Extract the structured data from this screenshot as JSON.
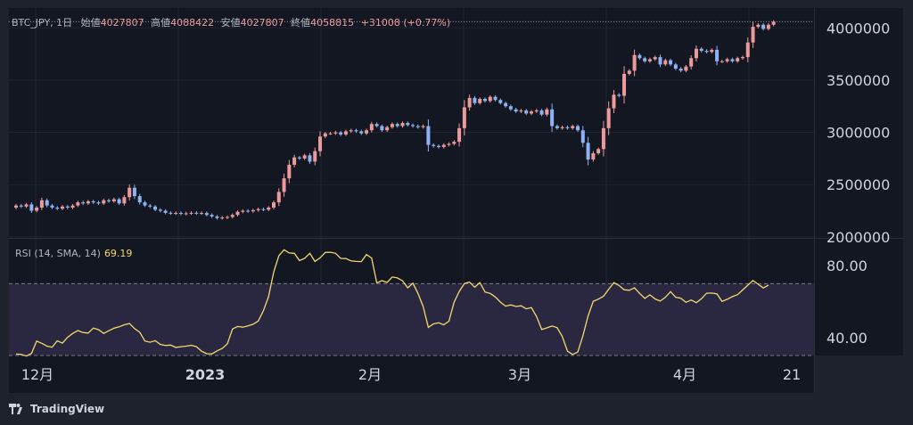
{
  "legend": {
    "symbol": "BTC_JPY, 1日",
    "open_label": "始値",
    "open": "4027807",
    "high_label": "高値",
    "high": "4088422",
    "low_label": "安値",
    "low": "4027807",
    "close_label": "終値",
    "close": "4058815",
    "change": "+31008 (+0.77%)"
  },
  "rsi_legend": {
    "label": "RSI (14, SMA, 14)",
    "value": "69.19"
  },
  "branding": {
    "name": "TradingView"
  },
  "colors": {
    "up": "#ef9a9a",
    "down": "#8fb2f5",
    "rsi": "#f5d76e",
    "band": "#2a2840",
    "bg": "#1e222d",
    "pane": "#131722"
  },
  "chart_data": [
    {
      "type": "candlestick",
      "title": "BTC_JPY, 1日",
      "price_axis_ticks": [
        "4000000",
        "3500000",
        "3000000",
        "2500000",
        "2000000"
      ],
      "ylim": [
        1990000,
        4190000
      ],
      "time_axis_ticks": [
        "12月",
        "2023",
        "2月",
        "3月",
        "4月",
        "21"
      ],
      "last_price": 4058815,
      "closes": [
        2300000,
        2290000,
        2310000,
        2250000,
        2280000,
        2350000,
        2300000,
        2280000,
        2270000,
        2290000,
        2280000,
        2300000,
        2330000,
        2320000,
        2340000,
        2330000,
        2320000,
        2350000,
        2340000,
        2360000,
        2320000,
        2380000,
        2470000,
        2390000,
        2330000,
        2300000,
        2290000,
        2260000,
        2250000,
        2230000,
        2225000,
        2228000,
        2220000,
        2225000,
        2230000,
        2225000,
        2228000,
        2210000,
        2195000,
        2180000,
        2185000,
        2190000,
        2210000,
        2240000,
        2250000,
        2245000,
        2255000,
        2265000,
        2260000,
        2280000,
        2330000,
        2430000,
        2560000,
        2690000,
        2760000,
        2750000,
        2780000,
        2720000,
        2820000,
        2960000,
        2990000,
        2990000,
        3000000,
        2980000,
        3010000,
        3020000,
        3010000,
        2990000,
        3020000,
        3080000,
        3060000,
        3020000,
        3050000,
        3080000,
        3060000,
        3090000,
        3070000,
        3060000,
        3050000,
        3060000,
        2880000,
        2870000,
        2860000,
        2880000,
        2890000,
        2910000,
        3040000,
        3240000,
        3330000,
        3280000,
        3320000,
        3300000,
        3340000,
        3310000,
        3280000,
        3250000,
        3220000,
        3200000,
        3210000,
        3180000,
        3200000,
        3210000,
        3170000,
        3220000,
        3060000,
        3040000,
        3050000,
        3040000,
        3060000,
        3020000,
        2900000,
        2740000,
        2800000,
        2840000,
        3040000,
        3230000,
        3360000,
        3350000,
        3560000,
        3590000,
        3740000,
        3710000,
        3680000,
        3700000,
        3720000,
        3650000,
        3690000,
        3650000,
        3610000,
        3590000,
        3630000,
        3710000,
        3800000,
        3780000,
        3770000,
        3790000,
        3680000,
        3680000,
        3700000,
        3680000,
        3710000,
        3720000,
        3860000,
        4010000,
        4030000,
        3990000,
        4030000,
        4058815
      ]
    },
    {
      "type": "line",
      "title": "RSI (14, SMA, 14)",
      "axis_ticks": [
        "80.00",
        "40.00"
      ],
      "ylim": [
        30,
        95
      ],
      "bands": [
        70,
        30
      ],
      "values": [
        30.8,
        30.6,
        29.7,
        31.2,
        38.0,
        36.8,
        35.2,
        34.6,
        38.2,
        36.9,
        40.1,
        42.3,
        43.9,
        42.8,
        42.5,
        45.3,
        44.4,
        42.3,
        43.8,
        45.2,
        46.0,
        47.1,
        47.8,
        45.0,
        43.0,
        38.1,
        37.4,
        38.3,
        36.2,
        35.6,
        35.8,
        34.5,
        34.9,
        35.2,
        35.7,
        34.9,
        32.4,
        31.0,
        30.9,
        32.6,
        33.9,
        36.5,
        44.8,
        46.2,
        45.8,
        46.5,
        47.4,
        49.2,
        54.9,
        62.8,
        76.5,
        85.6,
        88.9,
        87.1,
        86.9,
        82.9,
        84.1,
        86.9,
        82.4,
        84.4,
        87.4,
        87.5,
        86.9,
        84.1,
        84.0,
        82.7,
        82.4,
        82.3,
        86.2,
        84.3,
        70.4,
        71.7,
        70.7,
        73.7,
        73.2,
        71.6,
        67.7,
        70.3,
        64.6,
        57.3,
        45.7,
        47.6,
        48.2,
        47.1,
        49.1,
        59.7,
        65.7,
        70.1,
        70.9,
        68.0,
        70.6,
        65.4,
        64.6,
        62.6,
        59.7,
        57.5,
        58.2,
        57.3,
        57.7,
        56.0,
        56.7,
        51.7,
        44.5,
        45.4,
        46.4,
        45.5,
        40.5,
        32.4,
        30.6,
        31.9,
        41.0,
        52.1,
        60.2,
        61.4,
        63.0,
        66.9,
        70.6,
        69.0,
        66.6,
        66.3,
        67.7,
        64.6,
        61.8,
        63.8,
        61.5,
        60.3,
        62.4,
        65.6,
        62.4,
        61.9,
        59.6,
        60.9,
        59.4,
        61.6,
        64.7,
        64.8,
        64.3,
        60.1,
        61.3,
        62.8,
        63.9,
        66.5,
        69.2,
        71.8,
        69.7,
        67.6,
        69.19
      ]
    }
  ]
}
